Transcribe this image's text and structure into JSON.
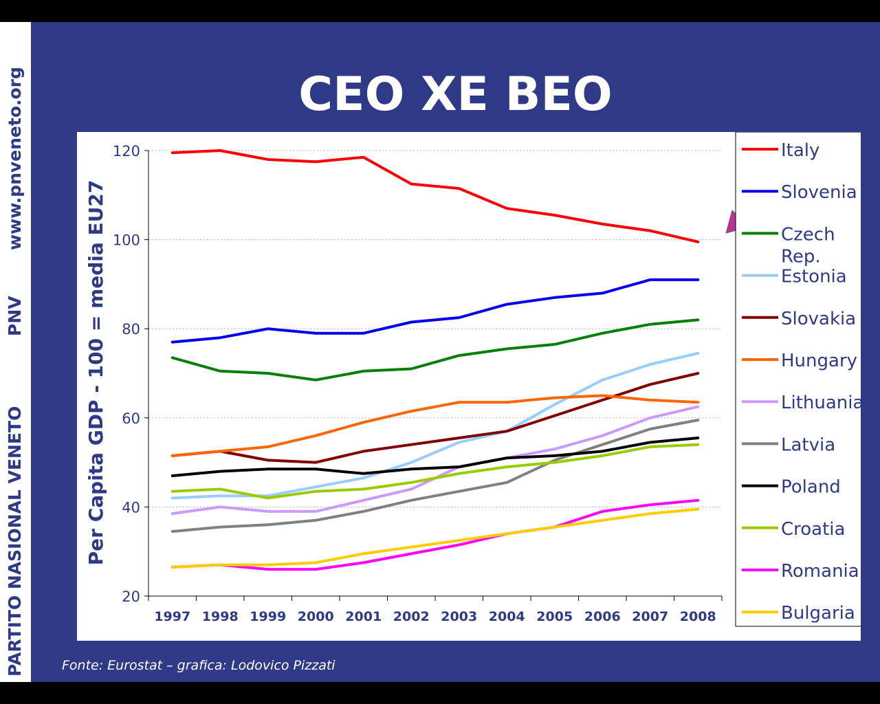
{
  "side": {
    "texts": [
      "PARTITO NASIONAL VENETO",
      "PNV",
      "www.pnveneto.org"
    ]
  },
  "title": "CEO XE BEO",
  "source": "Fonte: Eurostat – grafica: Lodovico Pizzati",
  "chart_data": {
    "type": "line",
    "title": "",
    "xlabel": "",
    "ylabel": "Per Capita GDP - 100 = media EU27",
    "categories": [
      "1997",
      "1998",
      "1999",
      "2000",
      "2001",
      "2002",
      "2003",
      "2004",
      "2005",
      "2006",
      "2007",
      "2008"
    ],
    "ylim": [
      20,
      120
    ],
    "yticks": [
      20,
      40,
      60,
      80,
      100,
      120
    ],
    "grid": true,
    "legend": "right",
    "annotation": "arrow pointing at Italy line near 2007-2008",
    "series": [
      {
        "name": "Italy",
        "color": "#ff0000",
        "values": [
          119.5,
          120,
          118,
          117.5,
          118.5,
          112.5,
          111.5,
          107,
          105.5,
          103.5,
          102,
          99.5
        ]
      },
      {
        "name": "Slovenia",
        "color": "#0000ee",
        "values": [
          77,
          78,
          80,
          79,
          79,
          81.5,
          82.5,
          85.5,
          87,
          88,
          91,
          91
        ]
      },
      {
        "name": "Czech Rep.",
        "color": "#008000",
        "values": [
          73.5,
          70.5,
          70,
          68.5,
          70.5,
          71,
          74,
          75.5,
          76.5,
          79,
          81,
          82
        ]
      },
      {
        "name": "Estonia",
        "color": "#99ccff",
        "values": [
          42,
          42.5,
          42.5,
          44.5,
          46.5,
          50,
          54.5,
          57,
          63,
          68.5,
          72,
          74.5
        ]
      },
      {
        "name": "Slovakia",
        "color": "#800000",
        "values": [
          51.5,
          52.5,
          50.5,
          50,
          52.5,
          54,
          55.5,
          57,
          60.5,
          64,
          67.5,
          70
        ]
      },
      {
        "name": "Hungary",
        "color": "#ff6600",
        "values": [
          51.5,
          52.5,
          53.5,
          56,
          59,
          61.5,
          63.5,
          63.5,
          64.5,
          65,
          64,
          63.5
        ]
      },
      {
        "name": "Lithuania",
        "color": "#cc99ff",
        "values": [
          38.5,
          40,
          39,
          39,
          41.5,
          44,
          49,
          51,
          53,
          56,
          60,
          62.5
        ]
      },
      {
        "name": "Latvia",
        "color": "#808080",
        "values": [
          34.5,
          35.5,
          36,
          37,
          39,
          41.5,
          43.5,
          45.5,
          50.5,
          54,
          57.5,
          59.5
        ]
      },
      {
        "name": "Poland",
        "color": "#000000",
        "values": [
          47,
          48,
          48.5,
          48.5,
          47.5,
          48.5,
          49,
          51,
          51.5,
          52.5,
          54.5,
          55.5
        ]
      },
      {
        "name": "Croatia",
        "color": "#99cc00",
        "values": [
          43.5,
          44,
          42,
          43.5,
          44,
          45.5,
          47.5,
          49,
          50,
          51.5,
          53.5,
          54
        ]
      },
      {
        "name": "Romania",
        "color": "#ff00ff",
        "values": [
          26.5,
          27,
          26,
          26,
          27.5,
          29.5,
          31.5,
          34,
          35.5,
          39,
          40.5,
          41.5
        ]
      },
      {
        "name": "Bulgaria",
        "color": "#ffcc00",
        "values": [
          26.5,
          27,
          27,
          27.5,
          29.5,
          31,
          32.5,
          34,
          35.5,
          37,
          38.5,
          39.5
        ]
      }
    ]
  }
}
